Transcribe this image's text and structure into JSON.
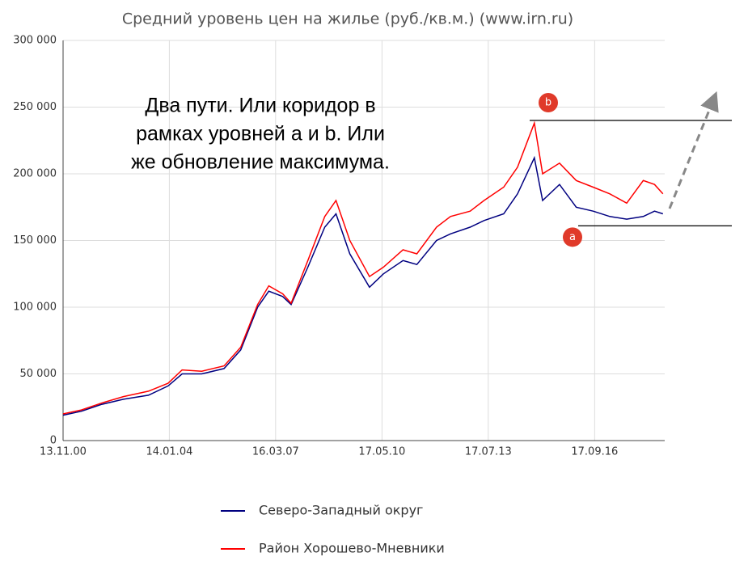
{
  "chart_data": {
    "type": "line",
    "title": "Средний уровень цен на жилье (руб./кв.м.) (www.irn.ru)",
    "x": [
      "2000-11-13",
      "2001-06-01",
      "2002-01-01",
      "2002-09-01",
      "2003-06-01",
      "2004-01-01",
      "2004-06-01",
      "2005-01-01",
      "2005-09-01",
      "2006-03-01",
      "2006-09-01",
      "2007-01-01",
      "2007-06-01",
      "2007-09-01",
      "2008-03-01",
      "2008-09-01",
      "2009-01-01",
      "2009-06-01",
      "2010-01-01",
      "2010-06-01",
      "2011-01-01",
      "2011-06-01",
      "2012-01-01",
      "2012-06-01",
      "2013-01-01",
      "2013-06-01",
      "2014-01-01",
      "2014-06-01",
      "2014-12-01",
      "2015-03-01",
      "2015-09-01",
      "2016-03-01",
      "2016-09-01",
      "2017-03-01",
      "2017-09-01",
      "2018-03-01",
      "2018-07-01",
      "2018-10-01"
    ],
    "series": [
      {
        "name": "Северо-Западный округ",
        "color": "#000080",
        "values": [
          19000,
          22000,
          27000,
          31000,
          34000,
          41000,
          50000,
          50000,
          54000,
          68000,
          100000,
          112000,
          108000,
          102000,
          130000,
          160000,
          170000,
          140000,
          115000,
          125000,
          135000,
          132000,
          150000,
          155000,
          160000,
          165000,
          170000,
          185000,
          212000,
          180000,
          192000,
          175000,
          172000,
          168000,
          166000,
          168000,
          172000,
          170000
        ]
      },
      {
        "name": "Район Хорошево-Мневники",
        "color": "#ff0000",
        "values": [
          20000,
          23000,
          28000,
          33000,
          37000,
          43000,
          53000,
          52000,
          56000,
          70000,
          102000,
          116000,
          110000,
          103000,
          135000,
          168000,
          180000,
          150000,
          123000,
          130000,
          143000,
          140000,
          160000,
          168000,
          172000,
          180000,
          190000,
          205000,
          238000,
          200000,
          208000,
          195000,
          190000,
          185000,
          178000,
          195000,
          192000,
          185000
        ]
      }
    ],
    "xlim": [
      "2000-11-13",
      "2018-10-20"
    ],
    "xticks": [
      {
        "value": "2000-11-13",
        "label": "13.11.00"
      },
      {
        "value": "2004-01-14",
        "label": "14.01.04"
      },
      {
        "value": "2007-03-16",
        "label": "16.03.07"
      },
      {
        "value": "2010-05-17",
        "label": "17.05.10"
      },
      {
        "value": "2013-07-17",
        "label": "17.07.13"
      },
      {
        "value": "2016-09-17",
        "label": "17.09.16"
      }
    ],
    "ylim": [
      0,
      300000
    ],
    "yticks": [
      0,
      {
        "value": 50000,
        "label": "50 000"
      },
      {
        "value": 100000,
        "label": "100 000"
      },
      {
        "value": 150000,
        "label": "150 000"
      },
      {
        "value": 200000,
        "label": "200 000"
      },
      {
        "value": 250000,
        "label": "250 000"
      },
      {
        "value": 300000,
        "label": "300 000"
      }
    ],
    "grid": true,
    "annotation_text": [
      "Два пути. Или коридор в",
      "рамках уровней а и b. Или",
      "же обновление максимума."
    ],
    "levels": [
      {
        "label": "a",
        "value": 161000
      },
      {
        "label": "b",
        "value": 240000
      }
    ]
  }
}
